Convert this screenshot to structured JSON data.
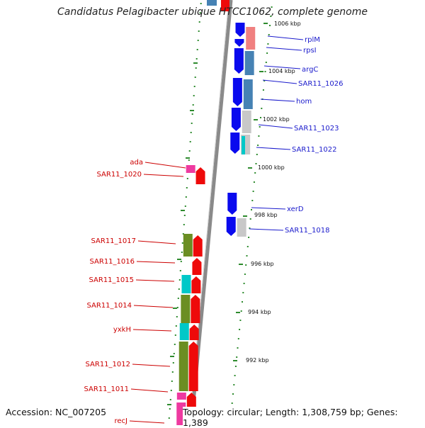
{
  "title": "Candidatus Pelagibacter ubique HTCC1062, complete genome",
  "footer": {
    "accession": "Accession: NC_007205",
    "topology": "Topology: circular; Length: 1,308,759 bp; Genes: 1,389"
  },
  "colors": {
    "plus_strand_label": "#1a1acc",
    "minus_strand_label": "#cc0000",
    "backbone": "#8a8a8a",
    "cds_forward": "#0a0aee",
    "cds_reverse": "#ee0a0a",
    "gc_dots": "#2e8b2e",
    "cog_olive": "#6b8e23",
    "cog_cyan": "#00c8c8",
    "cog_pink": "#ee3aa0",
    "cog_steel": "#4682b4",
    "cog_salmon": "#f08080",
    "cog_grey": "#c8c8c8"
  },
  "ticks": [
    "1006 kbp",
    "1004 kbp",
    "1002 kbp",
    "1000 kbp",
    "998 kbp",
    "996 kbp",
    "994 kbp",
    "992 kbp"
  ],
  "genes_plus": [
    "rplM",
    "rpsI",
    "argC",
    "SAR11_1026",
    "hom",
    "SAR11_1023",
    "SAR11_1022",
    "xerD",
    "SAR11_1018"
  ],
  "genes_minus": [
    "ada",
    "SAR11_1020",
    "SAR11_1017",
    "SAR11_1016",
    "SAR11_1015",
    "SAR11_1014",
    "yxkH",
    "SAR11_1012",
    "SAR11_1011",
    "recJ"
  ]
}
